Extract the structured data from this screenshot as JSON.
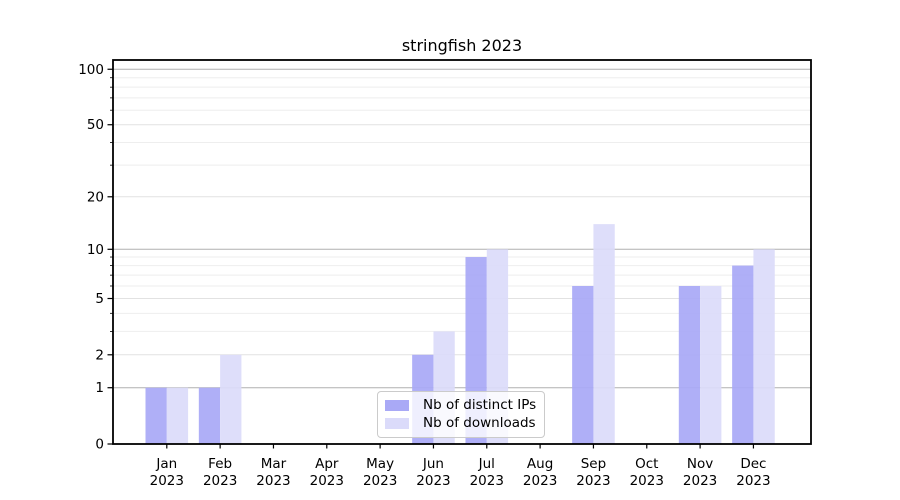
{
  "chart_data": {
    "type": "bar",
    "title": "stringfish 2023",
    "categories": [
      "Jan 2023",
      "Feb 2023",
      "Mar 2023",
      "Apr 2023",
      "May 2023",
      "Jun 2023",
      "Jul 2023",
      "Aug 2023",
      "Sep 2023",
      "Oct 2023",
      "Nov 2023",
      "Dec 2023"
    ],
    "series": [
      {
        "name": "Nb of distinct IPs",
        "color": "#a9a9f6",
        "values": [
          1,
          1,
          0,
          0,
          0,
          2,
          9,
          0,
          6,
          0,
          6,
          8
        ]
      },
      {
        "name": "Nb of downloads",
        "color": "#dbdbfa",
        "values": [
          1,
          2,
          0,
          0,
          0,
          3,
          10,
          0,
          14,
          0,
          6,
          10
        ]
      }
    ],
    "xlabel": "",
    "ylabel": "",
    "yscale": "log1p",
    "ylim": [
      0,
      112
    ],
    "ytick_values": [
      0,
      1,
      2,
      5,
      10,
      20,
      50,
      100
    ],
    "ytick_labels": [
      "0",
      "1",
      "2",
      "5",
      "10",
      "20",
      "50",
      "100"
    ],
    "minor_gridline_values": [
      3,
      4,
      6,
      7,
      8,
      9,
      30,
      40,
      60,
      70,
      80,
      90
    ],
    "grid": true,
    "legend_position": "lower center",
    "style": {
      "major_grid": "#b0b0b0",
      "sub_grid": "#e2e2e2",
      "minor_grid": "#eeeeee",
      "axis": "#000000",
      "background": "#ffffff"
    }
  }
}
